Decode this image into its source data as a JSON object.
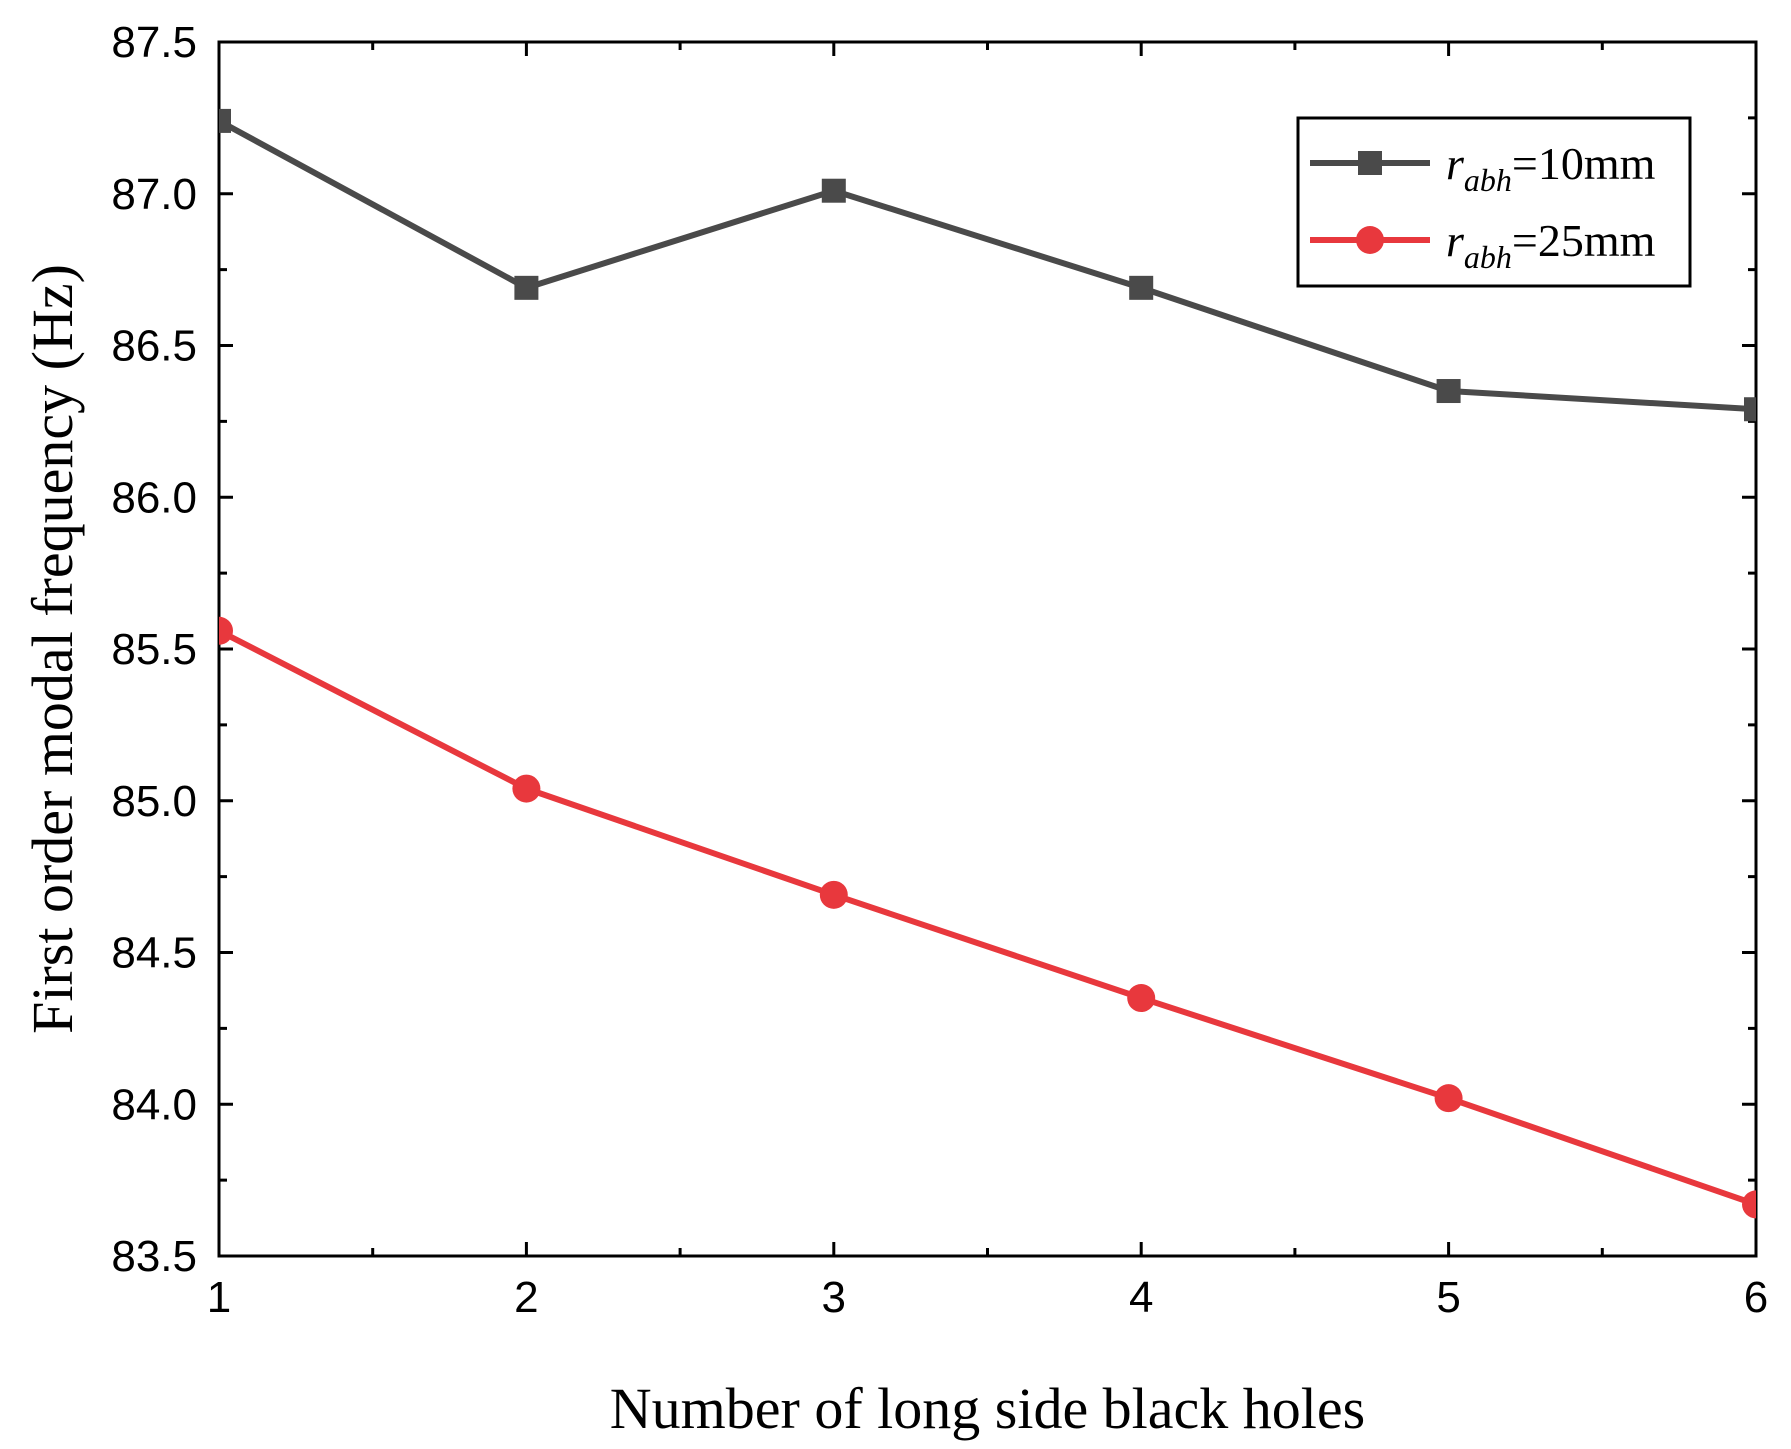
{
  "chart_data": {
    "type": "line",
    "title": "",
    "xlabel": "Number of long side black holes",
    "ylabel": "First order modal frequency (Hz)",
    "x": [
      1,
      2,
      3,
      4,
      5,
      6
    ],
    "xlim": [
      1,
      6
    ],
    "ylim": [
      83.5,
      87.5
    ],
    "xticks": [
      1,
      2,
      3,
      4,
      5,
      6
    ],
    "yticks": [
      83.5,
      84.0,
      84.5,
      85.0,
      85.5,
      86.0,
      86.5,
      87.0,
      87.5
    ],
    "xtick_labels": [
      "1",
      "2",
      "3",
      "4",
      "5",
      "6"
    ],
    "ytick_labels": [
      "83.5",
      "84.0",
      "84.5",
      "85.0",
      "85.5",
      "86.0",
      "86.5",
      "87.0",
      "87.5"
    ],
    "grid": false,
    "legend_position": "top-right",
    "series": [
      {
        "name": "r_abh=10mm",
        "legend_symbol": "r",
        "legend_subscript": "abh",
        "legend_suffix": "=10mm",
        "marker": "square",
        "color": "#4a4a4a",
        "values": [
          87.24,
          86.69,
          87.01,
          86.69,
          86.35,
          86.29
        ]
      },
      {
        "name": "r_abh=25mm",
        "legend_symbol": "r",
        "legend_subscript": "abh",
        "legend_suffix": "=25mm",
        "marker": "circle",
        "color": "#e8383d",
        "values": [
          85.56,
          85.04,
          84.69,
          84.35,
          84.02,
          83.67
        ]
      }
    ]
  }
}
